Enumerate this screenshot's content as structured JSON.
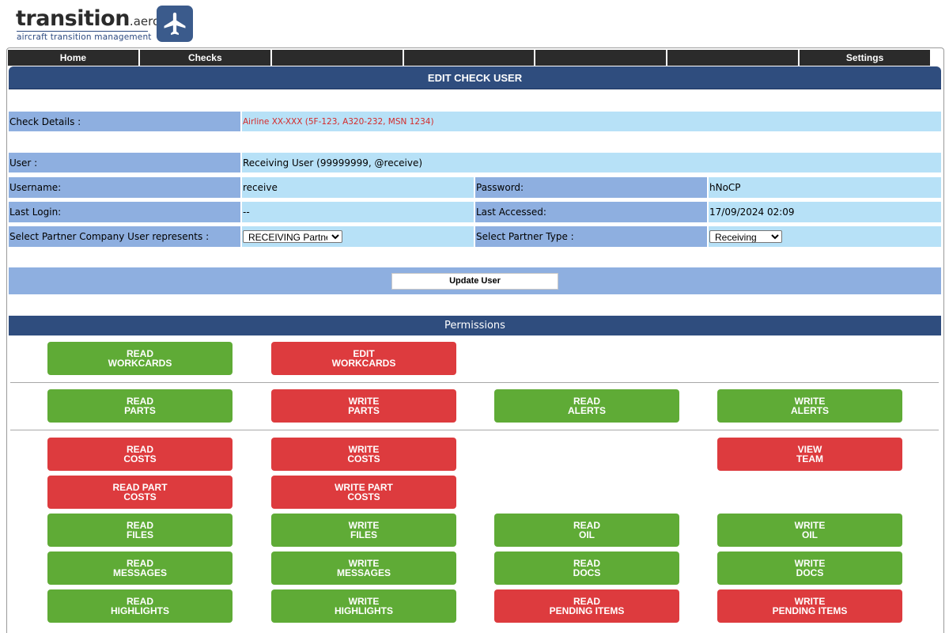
{
  "logo": {
    "wordmark": "transition",
    "suffix": ".aero",
    "tagline": "aircraft transition management",
    "badge_icon": "airplane-icon"
  },
  "nav": {
    "items": [
      "Home",
      "Checks",
      "",
      "",
      "",
      "",
      "Settings"
    ]
  },
  "title": "EDIT CHECK USER",
  "check_details": {
    "label": "Check Details :",
    "value": "Airline XX-XXX (5F-123, A320-232, MSN 1234)"
  },
  "user": {
    "label": "User :",
    "value": "Receiving User (99999999, @receive)"
  },
  "username": {
    "label": "Username:",
    "value": "receive"
  },
  "password": {
    "label": "Password:",
    "value": "hNoCP"
  },
  "last_login": {
    "label": "Last Login:",
    "value": "--"
  },
  "last_accessed": {
    "label": "Last Accessed:",
    "value": "17/09/2024 02:09"
  },
  "partner_company": {
    "label": "Select Partner Company User represents :",
    "selected": "RECEIVING Partner"
  },
  "partner_type": {
    "label": "Select Partner Type :",
    "selected": "Receiving"
  },
  "update_button": "Update User",
  "permissions_title": "Permissions",
  "permissions": [
    {
      "line1": "READ",
      "line2": "WORKCARDS",
      "enabled": true
    },
    {
      "line1": "EDIT",
      "line2": "WORKCARDS",
      "enabled": false
    },
    {
      "line1": "READ",
      "line2": "PARTS",
      "enabled": true
    },
    {
      "line1": "WRITE",
      "line2": "PARTS",
      "enabled": false
    },
    {
      "line1": "READ",
      "line2": "ALERTS",
      "enabled": true
    },
    {
      "line1": "WRITE",
      "line2": "ALERTS",
      "enabled": true
    },
    {
      "line1": "READ",
      "line2": "COSTS",
      "enabled": false
    },
    {
      "line1": "WRITE",
      "line2": "COSTS",
      "enabled": false
    },
    {
      "line1": "VIEW",
      "line2": "TEAM",
      "enabled": false
    },
    {
      "line1": "READ PART",
      "line2": "COSTS",
      "enabled": false
    },
    {
      "line1": "WRITE PART",
      "line2": "COSTS",
      "enabled": false
    },
    {
      "line1": "READ",
      "line2": "FILES",
      "enabled": true
    },
    {
      "line1": "WRITE",
      "line2": "FILES",
      "enabled": true
    },
    {
      "line1": "READ",
      "line2": "OIL",
      "enabled": true
    },
    {
      "line1": "WRITE",
      "line2": "OIL",
      "enabled": true
    },
    {
      "line1": "READ",
      "line2": "MESSAGES",
      "enabled": true
    },
    {
      "line1": "WRITE",
      "line2": "MESSAGES",
      "enabled": true
    },
    {
      "line1": "READ",
      "line2": "DOCS",
      "enabled": true
    },
    {
      "line1": "WRITE",
      "line2": "DOCS",
      "enabled": true
    },
    {
      "line1": "READ",
      "line2": "HIGHLIGHTS",
      "enabled": true
    },
    {
      "line1": "WRITE",
      "line2": "HIGHLIGHTS",
      "enabled": true
    },
    {
      "line1": "READ",
      "line2": "PENDING ITEMS",
      "enabled": false
    },
    {
      "line1": "WRITE",
      "line2": "PENDING ITEMS",
      "enabled": false
    }
  ],
  "colors": {
    "enabled": "#5fab36",
    "disabled": "#dd3b3e",
    "header": "#2f4d7e",
    "label_bg": "#8eafe0",
    "value_bg": "#b7e1f7"
  }
}
